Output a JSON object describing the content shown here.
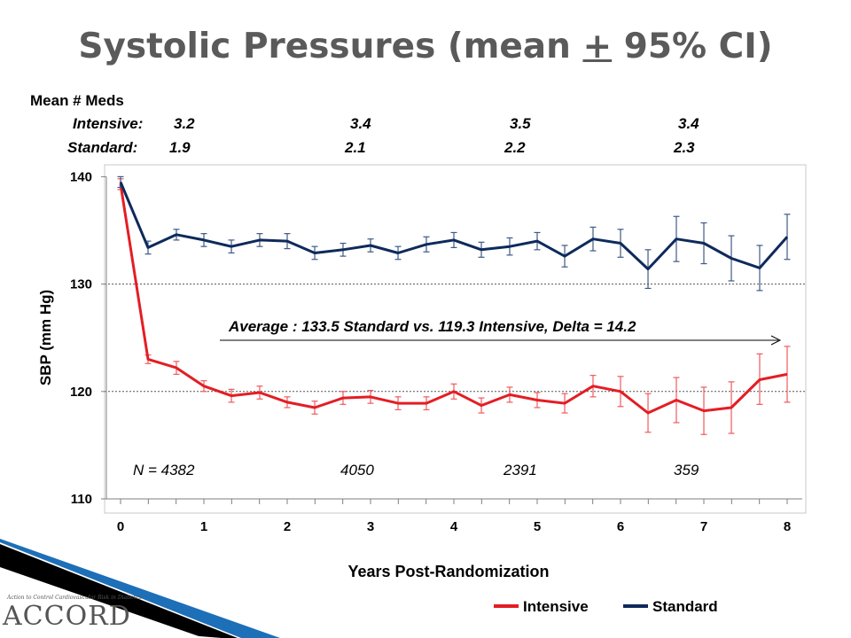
{
  "title_parts": {
    "before": "Systolic Pressures (mean ",
    "pm": "+",
    "after": " 95% CI)"
  },
  "meds": {
    "header": "Mean # Meds",
    "intensive_label": "Intensive:",
    "standard_label": "Standard:",
    "intensive": [
      "3.2",
      "3.4",
      "3.5",
      "3.4"
    ],
    "standard": [
      "1.9",
      "2.1",
      "2.2",
      "2.3"
    ]
  },
  "n_labels": [
    "N = 4382",
    "4050",
    "2391",
    "359"
  ],
  "logo": {
    "small": "Action to Control Cardiovascular Risk in Diabetes",
    "big": "ACCORD"
  },
  "colors": {
    "intensive": "#e31e24",
    "standard": "#0e2a5c",
    "accent_blue": "#1d6fb8"
  },
  "chart_data": {
    "type": "line",
    "xlabel": "Years Post-Randomization",
    "ylabel": "SBP (mm Hg)",
    "xlim": [
      0,
      8
    ],
    "ylim": [
      110,
      140
    ],
    "xticks": [
      0,
      1,
      2,
      3,
      4,
      5,
      6,
      7,
      8
    ],
    "yticks": [
      110,
      120,
      130,
      140
    ],
    "reference_lines": [
      120,
      130
    ],
    "annotation": "Average : 133.5 Standard vs. 119.3 Intensive, Delta = 14.2",
    "legend_position": "bottom-right",
    "series": [
      {
        "name": "Intensive",
        "color": "#e31e24",
        "x": [
          0,
          0.33,
          0.67,
          1,
          1.33,
          1.67,
          2,
          2.33,
          2.67,
          3,
          3.33,
          3.67,
          4,
          4.33,
          4.67,
          5,
          5.33,
          5.67,
          6,
          6.33,
          6.67,
          7,
          7.33,
          7.67,
          8
        ],
        "y": [
          139.3,
          123.0,
          122.2,
          120.5,
          119.6,
          119.9,
          119.0,
          118.5,
          119.4,
          119.5,
          118.9,
          118.9,
          120.0,
          118.7,
          119.7,
          119.2,
          118.9,
          120.5,
          120.0,
          118.0,
          119.2,
          118.2,
          118.5,
          121.1,
          121.6
        ],
        "ci_lower": [
          138.8,
          122.6,
          121.6,
          120.0,
          119.0,
          119.3,
          118.5,
          117.9,
          118.8,
          118.9,
          118.3,
          118.3,
          119.3,
          118.0,
          119.0,
          118.5,
          118.0,
          119.5,
          118.6,
          116.2,
          117.1,
          116.0,
          116.1,
          118.8,
          119.0
        ],
        "ci_upper": [
          139.8,
          123.4,
          122.8,
          121.0,
          120.2,
          120.5,
          119.5,
          119.1,
          120.0,
          120.1,
          119.5,
          119.5,
          120.7,
          119.4,
          120.4,
          119.9,
          119.8,
          121.5,
          121.4,
          119.8,
          121.3,
          120.4,
          120.9,
          123.5,
          124.2
        ]
      },
      {
        "name": "Standard",
        "color": "#0e2a5c",
        "x": [
          0,
          0.33,
          0.67,
          1,
          1.33,
          1.67,
          2,
          2.33,
          2.67,
          3,
          3.33,
          3.67,
          4,
          4.33,
          4.67,
          5,
          5.33,
          5.67,
          6,
          6.33,
          6.67,
          7,
          7.33,
          7.67,
          8
        ],
        "y": [
          139.5,
          133.4,
          134.6,
          134.1,
          133.5,
          134.1,
          134.0,
          132.9,
          133.2,
          133.6,
          132.9,
          133.7,
          134.1,
          133.2,
          133.5,
          134.0,
          132.6,
          134.2,
          133.8,
          131.4,
          134.2,
          133.8,
          132.4,
          131.5,
          134.4
        ],
        "ci_lower": [
          139.0,
          132.8,
          134.1,
          133.5,
          132.9,
          133.5,
          133.3,
          132.3,
          132.6,
          133.0,
          132.3,
          133.0,
          133.4,
          132.5,
          132.7,
          133.2,
          131.6,
          133.1,
          132.5,
          129.6,
          132.1,
          131.9,
          130.3,
          129.4,
          132.3
        ],
        "ci_upper": [
          140.0,
          134.0,
          135.1,
          134.7,
          134.1,
          134.7,
          134.7,
          133.5,
          133.8,
          134.2,
          133.5,
          134.4,
          134.8,
          133.9,
          134.3,
          134.8,
          133.6,
          135.3,
          135.1,
          133.2,
          136.3,
          135.7,
          134.5,
          133.6,
          136.5
        ]
      }
    ]
  }
}
